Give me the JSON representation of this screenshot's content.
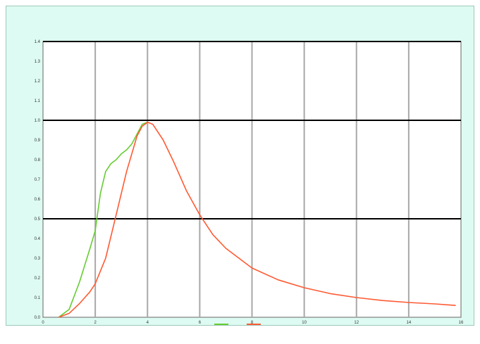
{
  "chart_data": {
    "type": "line",
    "title": "",
    "subtitle": "",
    "xlabel": "",
    "ylabel": "",
    "xlim": [
      0,
      16
    ],
    "ylim": [
      0,
      1.4
    ],
    "xticks": [
      0,
      2,
      4,
      6,
      8,
      10,
      12,
      14,
      16
    ],
    "yticks": [
      0,
      0.1,
      0.2,
      0.3,
      0.4,
      0.5,
      0.6,
      0.7,
      0.8,
      0.9,
      1.0,
      1.1,
      1.2,
      1.3,
      1.4
    ],
    "grid": {
      "vertical": true,
      "horizontal_major": [
        0.5,
        1.0,
        1.4
      ]
    },
    "legend_position": "bottom-center",
    "series": [
      {
        "color": "#66cc33",
        "x": [
          0.6,
          1.0,
          1.4,
          1.8,
          2.0,
          2.2,
          2.4,
          2.6,
          2.8,
          3.0,
          3.2,
          3.4,
          3.6,
          3.8,
          4.0
        ],
        "y": [
          0.0,
          0.04,
          0.18,
          0.35,
          0.44,
          0.63,
          0.74,
          0.78,
          0.8,
          0.83,
          0.85,
          0.88,
          0.93,
          0.98,
          0.99
        ]
      },
      {
        "color": "#ff5a33",
        "x": [
          0.6,
          1.0,
          1.4,
          1.8,
          2.0,
          2.4,
          2.8,
          3.2,
          3.6,
          3.8,
          4.0,
          4.2,
          4.6,
          5.0,
          5.5,
          6.0,
          6.5,
          7.0,
          8.0,
          9.0,
          10.0,
          11.0,
          12.0,
          13.0,
          14.0,
          15.0,
          15.8
        ],
        "y": [
          0.0,
          0.02,
          0.07,
          0.13,
          0.17,
          0.3,
          0.52,
          0.74,
          0.92,
          0.97,
          0.99,
          0.98,
          0.9,
          0.79,
          0.64,
          0.52,
          0.42,
          0.35,
          0.25,
          0.19,
          0.15,
          0.12,
          0.1,
          0.085,
          0.075,
          0.068,
          0.06
        ]
      }
    ]
  }
}
